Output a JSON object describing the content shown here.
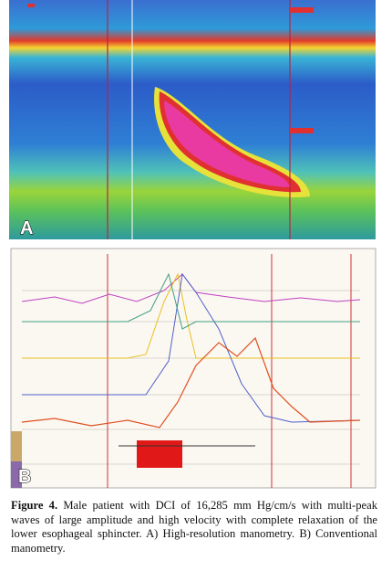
{
  "figure": {
    "panels": [
      {
        "label": "A"
      },
      {
        "label": "B"
      }
    ],
    "caption": {
      "label": "Figure 4.",
      "text": "Male patient with DCI of 16,285 mm Hg/cm/s with multi-peak waves of large amplitude and high velocity with complete relaxation of the lower esophageal sphincter. A) High-resolution manometry. B) Conventional manometry."
    }
  }
}
